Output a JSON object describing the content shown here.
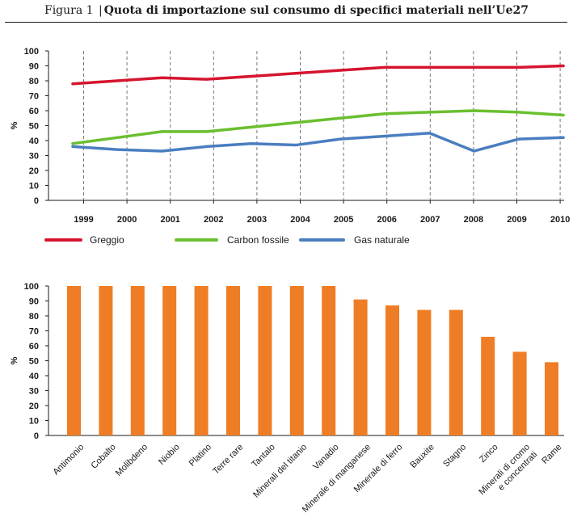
{
  "figure": {
    "label": "Figura 1",
    "separator": "|",
    "title": "Quota di importazione sul consumo di specifici materiali nell’Ue27"
  },
  "colors": {
    "greggio": "#d5152f",
    "carbon": "#6abf2f",
    "gas": "#4a7ec0",
    "bar": "#ee7d25",
    "axis": "#1a1a1a",
    "gridline": "#777777"
  },
  "chart_data": [
    {
      "type": "line",
      "ylabel": "%",
      "ylim": [
        0,
        100
      ],
      "yticks": [
        0,
        10,
        20,
        30,
        40,
        50,
        60,
        70,
        80,
        90,
        100
      ],
      "x": [
        "1999",
        "2000",
        "2001",
        "2002",
        "2003",
        "2004",
        "2005",
        "2006",
        "2007",
        "2008",
        "2009",
        "2010"
      ],
      "vertical_dashed_gridlines": true,
      "legend_position": "bottom",
      "series": [
        {
          "name": "Greggio",
          "color": "#d5152f",
          "values": [
            78,
            80,
            82,
            81,
            83,
            85,
            87,
            89,
            89,
            89,
            89,
            90
          ]
        },
        {
          "name": "Carbon fossile",
          "color": "#6abf2f",
          "values": [
            38,
            42,
            46,
            46,
            49,
            52,
            55,
            58,
            59,
            60,
            59,
            57
          ]
        },
        {
          "name": "Gas naturale",
          "color": "#4a7ec0",
          "values": [
            36,
            34,
            33,
            36,
            38,
            37,
            41,
            43,
            45,
            33,
            41,
            42
          ]
        }
      ]
    },
    {
      "type": "bar",
      "ylabel": "%",
      "ylim": [
        0,
        100
      ],
      "yticks": [
        0,
        10,
        20,
        30,
        40,
        50,
        60,
        70,
        80,
        90,
        100
      ],
      "bar_color": "#ee7d25",
      "categories": [
        [
          "Antimonio"
        ],
        [
          "Cobalto"
        ],
        [
          "Molibdeno"
        ],
        [
          "Niobio"
        ],
        [
          "Platino"
        ],
        [
          "Terre rare"
        ],
        [
          "Tantalo"
        ],
        [
          "Minerali del titanio"
        ],
        [
          "Vanadio"
        ],
        [
          "Minerale di manganese"
        ],
        [
          "Minerale di ferro"
        ],
        [
          "Bauxite"
        ],
        [
          "Stagno"
        ],
        [
          "Zinco"
        ],
        [
          "Minerali di cromo",
          "e concentrati"
        ],
        [
          "Rame"
        ]
      ],
      "values": [
        100,
        100,
        100,
        100,
        100,
        100,
        100,
        100,
        100,
        91,
        87,
        84,
        84,
        66,
        56,
        49
      ]
    }
  ]
}
